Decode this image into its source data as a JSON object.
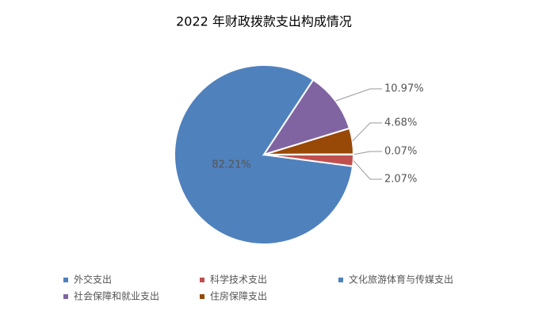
{
  "chart_data": {
    "type": "pie",
    "title": "2022 年财政拨款支出构成情况",
    "categories": [
      "外交支出",
      "科学技术支出",
      "文化旅游体育与传媒支出",
      "社会保障和就业支出",
      "住房保障支出"
    ],
    "values": [
      82.21,
      2.07,
      0.07,
      10.97,
      4.68
    ],
    "value_labels": [
      "82.21%",
      "2.07%",
      "0.07%",
      "10.97%",
      "4.68%"
    ],
    "colors": [
      "#4f81bd",
      "#c0504d",
      "#4f81bd",
      "#8064a2",
      "#984807"
    ]
  }
}
